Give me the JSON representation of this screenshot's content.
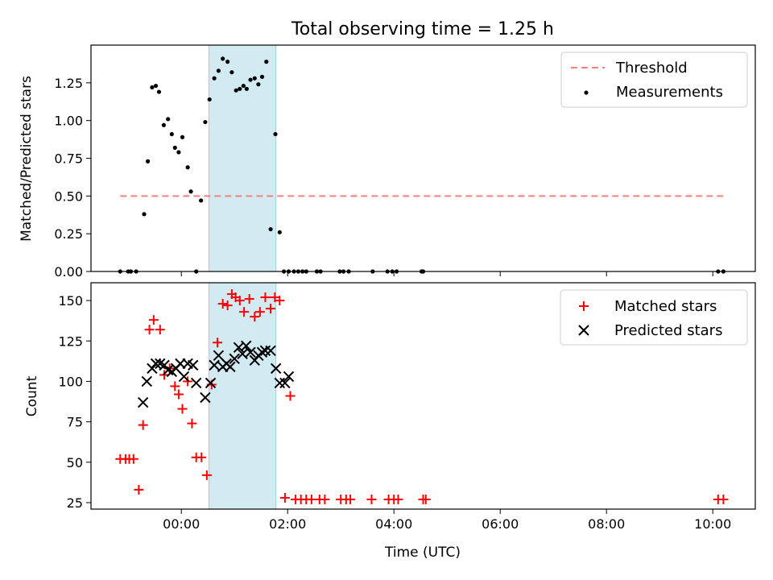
{
  "figure": {
    "title": "Total observing time = 1.25 h"
  },
  "colors": {
    "threshold": "#ff7f7f",
    "measurements": "#000000",
    "matched": "#ff0000",
    "predicted": "#000000",
    "observing_span": "#add8e6"
  },
  "chart_data": [
    {
      "type": "scatter",
      "ylabel": "Matched/Predicted stars",
      "xlabel": "",
      "xlim": [
        -1.7,
        10.8
      ],
      "ylim": [
        0,
        1.5
      ],
      "yticks": [
        0.0,
        0.25,
        0.5,
        0.75,
        1.0,
        1.25
      ],
      "ytick_labels": [
        "0.00",
        "0.25",
        "0.50",
        "0.75",
        "1.00",
        "1.25"
      ],
      "xticks": [
        0,
        2,
        4,
        6,
        8,
        10
      ],
      "grid": false,
      "legend": "upper right",
      "shaded_region": {
        "x": [
          0.52,
          1.78
        ],
        "label": ""
      },
      "threshold": {
        "name": "Threshold",
        "y": 0.5,
        "x": [
          -1.15,
          10.2
        ]
      },
      "series": [
        {
          "name": "Measurements",
          "marker": "dot",
          "x": [
            -1.15,
            -1.0,
            -0.95,
            -0.85,
            -0.7,
            -0.63,
            -0.55,
            -0.48,
            -0.42,
            -0.33,
            -0.25,
            -0.18,
            -0.12,
            -0.05,
            0.02,
            0.12,
            0.18,
            0.28,
            0.37,
            0.45,
            0.53,
            0.62,
            0.7,
            0.78,
            0.87,
            0.95,
            1.03,
            1.1,
            1.17,
            1.23,
            1.3,
            1.38,
            1.45,
            1.52,
            1.6,
            1.68,
            1.77,
            1.85,
            1.93,
            2.02,
            2.12,
            2.2,
            2.28,
            2.35,
            2.55,
            2.62,
            2.98,
            3.05,
            3.15,
            3.6,
            3.88,
            3.97,
            4.05,
            4.52,
            4.55,
            10.1,
            10.2
          ],
          "y": [
            0.0,
            0.0,
            0.0,
            0.0,
            0.38,
            0.73,
            1.22,
            1.23,
            1.19,
            0.97,
            1.01,
            0.91,
            0.82,
            0.79,
            0.89,
            0.69,
            0.53,
            0.0,
            0.47,
            0.99,
            1.14,
            1.28,
            1.33,
            1.41,
            1.39,
            1.32,
            1.2,
            1.21,
            1.23,
            1.21,
            1.27,
            1.28,
            1.24,
            1.29,
            1.39,
            0.28,
            0.91,
            0.26,
            0.0,
            0.0,
            0.0,
            0.0,
            0.0,
            0.0,
            0.0,
            0.0,
            0.0,
            0.0,
            0.0,
            0.0,
            0.0,
            0.0,
            0.0,
            0.0,
            0.0,
            0.0,
            0.0
          ]
        }
      ]
    },
    {
      "type": "scatter",
      "ylabel": "Count",
      "xlabel": "Time (UTC)",
      "xlim": [
        -1.7,
        10.8
      ],
      "ylim": [
        21,
        161
      ],
      "yticks": [
        25,
        50,
        75,
        100,
        125,
        150
      ],
      "ytick_labels": [
        "25",
        "50",
        "75",
        "100",
        "125",
        "150"
      ],
      "xticks": [
        0,
        2,
        4,
        6,
        8,
        10
      ],
      "xtick_labels": [
        "00:00",
        "02:00",
        "04:00",
        "06:00",
        "08:00",
        "10:00"
      ],
      "grid": false,
      "legend": "upper right",
      "shaded_region": {
        "x": [
          0.52,
          1.78
        ],
        "label": ""
      },
      "series": [
        {
          "name": "Matched stars",
          "marker": "plus",
          "x": [
            -1.15,
            -1.05,
            -0.98,
            -0.9,
            -0.8,
            -0.72,
            -0.6,
            -0.52,
            -0.4,
            -0.32,
            -0.22,
            -0.12,
            -0.05,
            0.02,
            0.12,
            0.2,
            0.28,
            0.38,
            0.48,
            0.57,
            0.68,
            0.78,
            0.87,
            0.95,
            1.02,
            1.1,
            1.18,
            1.28,
            1.38,
            1.48,
            1.58,
            1.68,
            1.76,
            1.85,
            1.95,
            2.05,
            2.15,
            2.25,
            2.35,
            2.45,
            2.6,
            2.7,
            3.0,
            3.1,
            3.18,
            3.58,
            3.9,
            4.0,
            4.08,
            4.55,
            4.6,
            10.1,
            10.2
          ],
          "y": [
            52,
            52,
            52,
            52,
            33,
            73,
            132,
            138,
            132,
            104,
            108,
            97,
            92,
            83,
            100,
            74,
            53,
            53,
            42,
            98,
            124,
            148,
            147,
            154,
            152,
            150,
            143,
            151,
            140,
            143,
            152,
            145,
            152,
            150,
            28,
            91,
            27,
            27,
            27,
            27,
            27,
            27,
            27,
            27,
            27,
            27,
            27,
            27,
            27,
            27,
            27,
            27,
            27
          ]
        },
        {
          "name": "Predicted stars",
          "marker": "x",
          "x": [
            -0.72,
            -0.65,
            -0.55,
            -0.48,
            -0.4,
            -0.32,
            -0.25,
            -0.18,
            -0.1,
            -0.02,
            0.05,
            0.12,
            0.22,
            0.28,
            0.45,
            0.55,
            0.62,
            0.7,
            0.78,
            0.85,
            0.92,
            1.0,
            1.08,
            1.15,
            1.22,
            1.3,
            1.38,
            1.45,
            1.52,
            1.58,
            1.68,
            1.78,
            1.85,
            1.95,
            2.02
          ],
          "y": [
            87,
            100,
            108,
            111,
            111,
            110,
            107,
            106,
            108,
            111,
            103,
            111,
            110,
            99,
            90,
            99,
            110,
            116,
            109,
            111,
            109,
            114,
            121,
            117,
            122,
            118,
            113,
            116,
            118,
            119,
            119,
            108,
            99,
            99,
            103
          ]
        }
      ]
    }
  ]
}
